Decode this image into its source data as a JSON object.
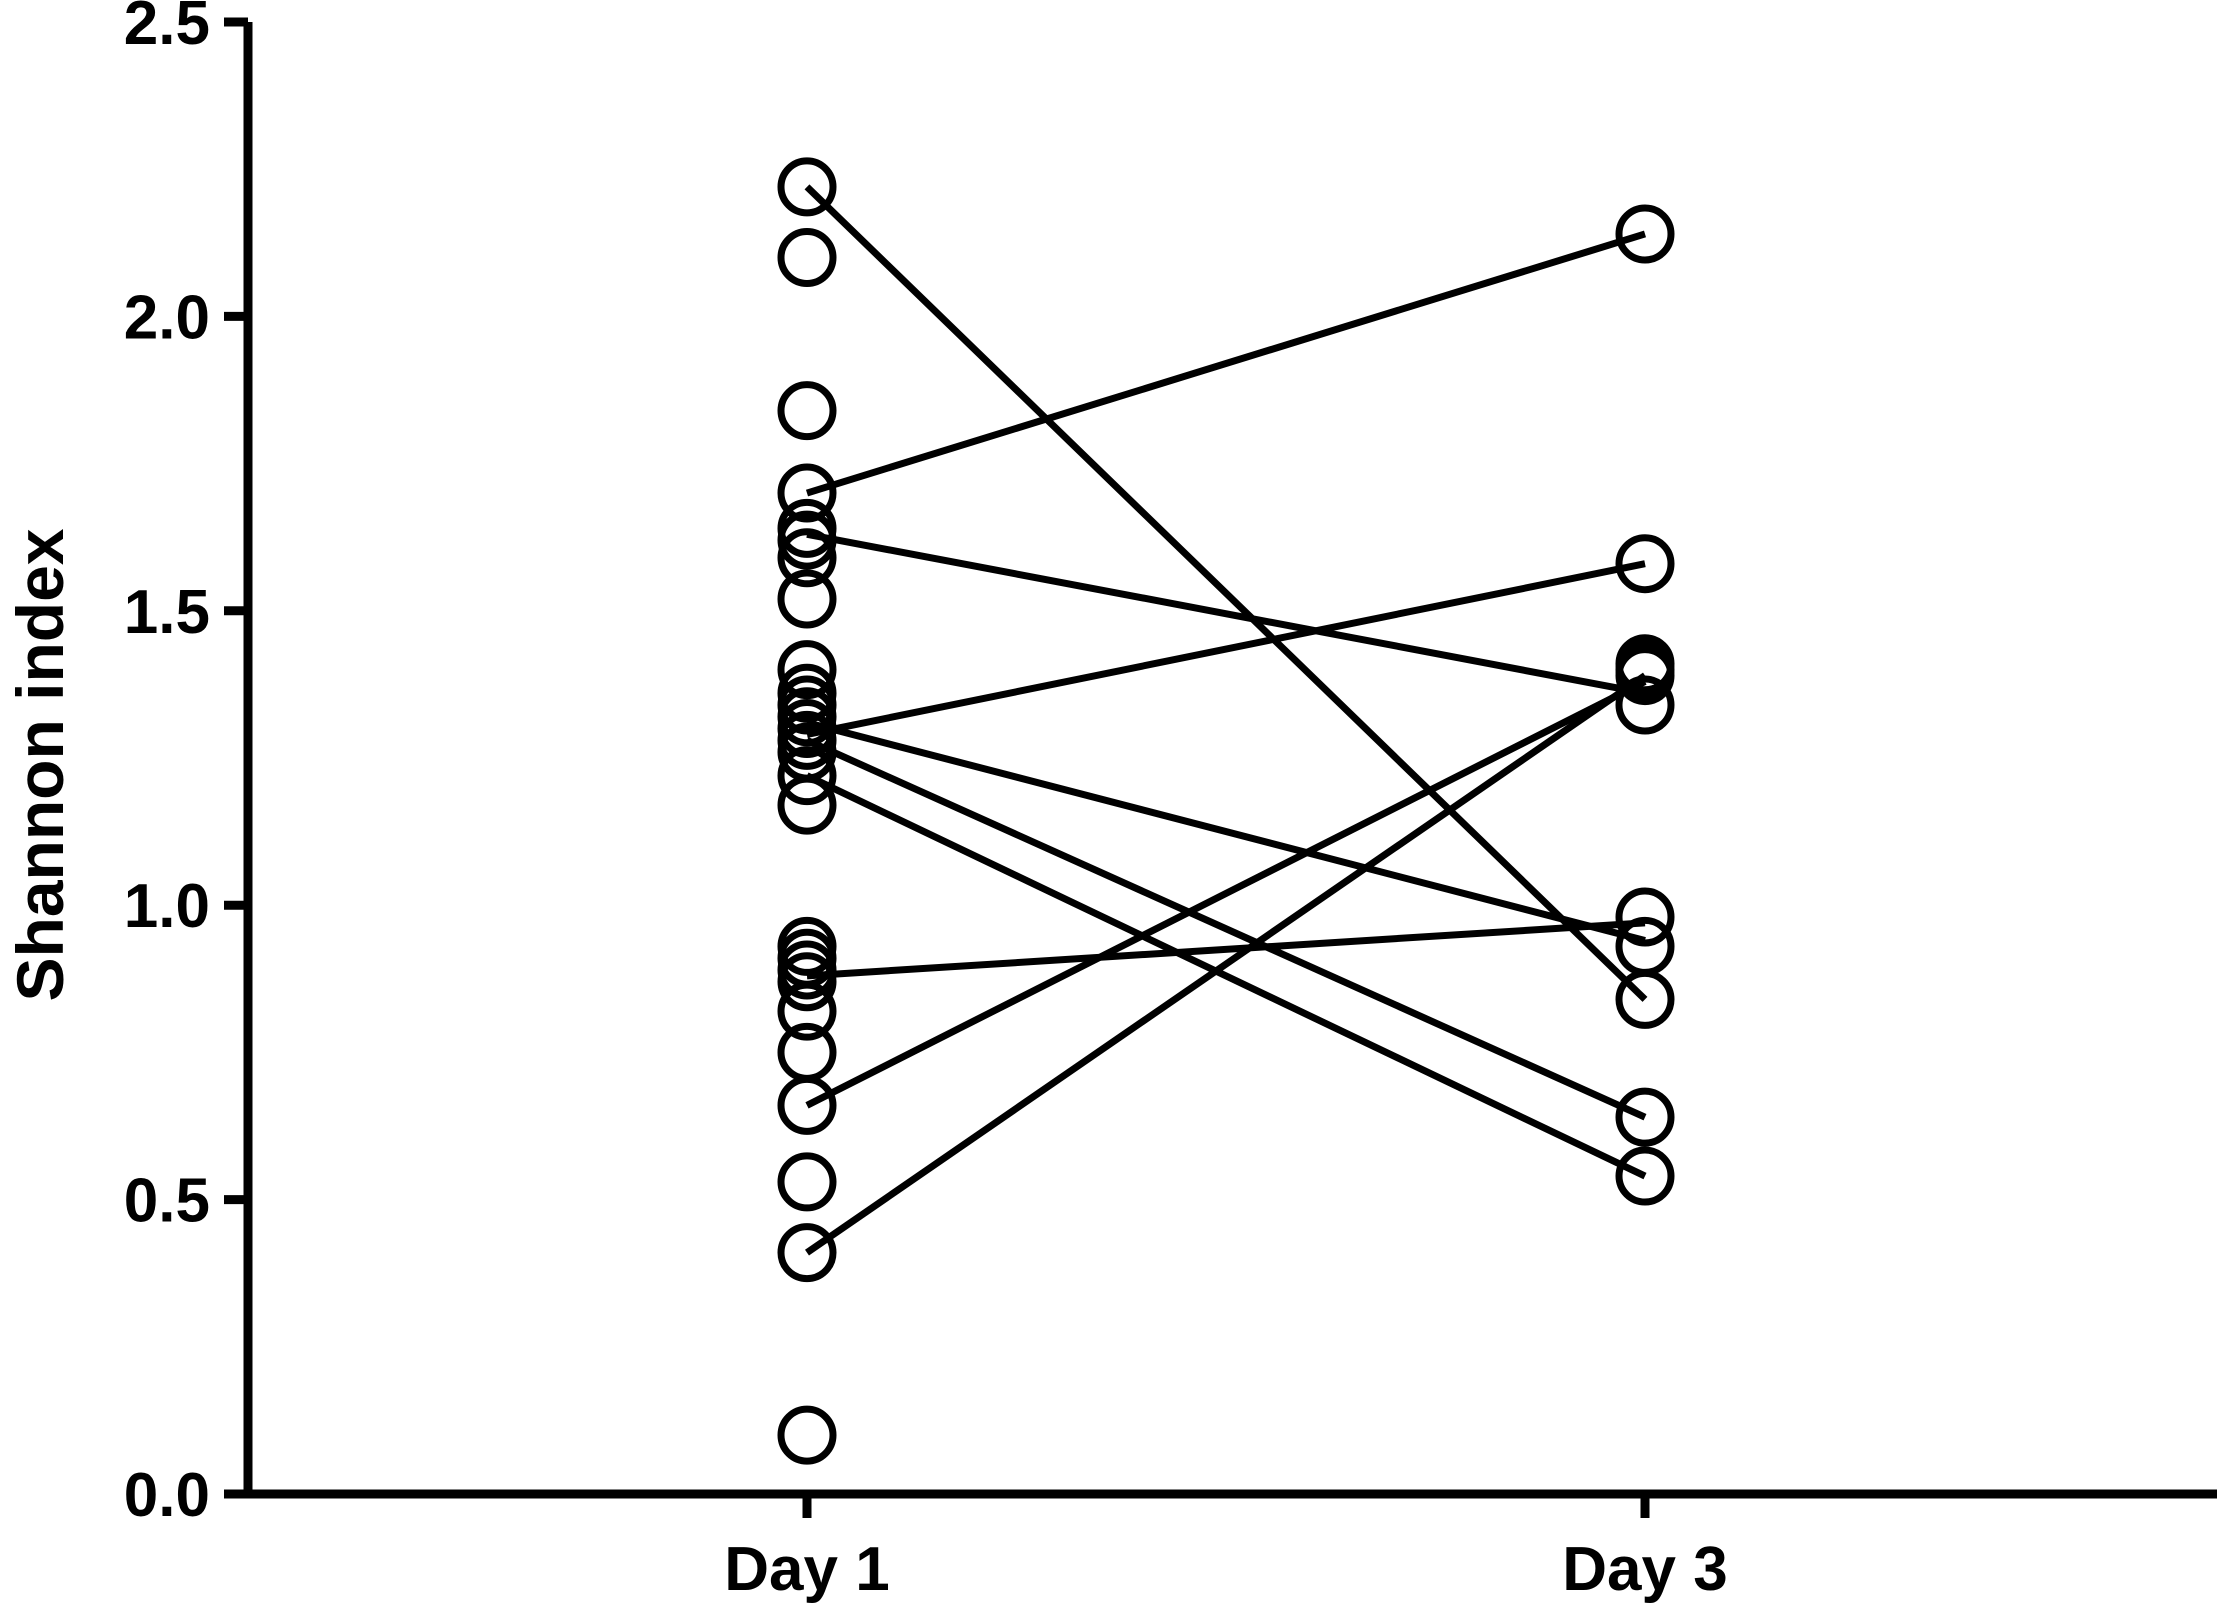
{
  "chart_data": {
    "type": "scatter",
    "subtype": "paired-dot-plot",
    "title": "",
    "xlabel": "",
    "ylabel": "Shannon index",
    "categories": [
      "Day 1",
      "Day 3"
    ],
    "ylim": [
      0,
      2.5
    ],
    "yticks": [
      "0.0",
      "0.5",
      "1.0",
      "1.5",
      "2.0",
      "2.5"
    ],
    "grid": false,
    "legend": "none",
    "marker": "open-circle",
    "color": "#000000",
    "points": {
      "Day 1": [
        2.22,
        2.1,
        1.84,
        1.7,
        1.64,
        1.62,
        1.59,
        1.52,
        1.4,
        1.36,
        1.34,
        1.32,
        1.3,
        1.28,
        1.26,
        1.22,
        1.17,
        0.93,
        0.91,
        0.89,
        0.87,
        0.82,
        0.75,
        0.66,
        0.53,
        0.41,
        0.1
      ],
      "Day 3": [
        2.14,
        1.58,
        1.41,
        1.4,
        1.39,
        1.34,
        0.98,
        0.93,
        0.84,
        0.64,
        0.54
      ]
    },
    "pairs": [
      {
        "day1": 2.22,
        "day3": 0.84
      },
      {
        "day1": 1.7,
        "day3": 2.14
      },
      {
        "day1": 1.63,
        "day3": 1.36
      },
      {
        "day1": 1.29,
        "day3": 1.58
      },
      {
        "day1": 1.31,
        "day3": 0.94
      },
      {
        "day1": 1.28,
        "day3": 0.64
      },
      {
        "day1": 1.22,
        "day3": 0.54
      },
      {
        "day1": 0.88,
        "day3": 0.97
      },
      {
        "day1": 0.66,
        "day3": 1.38
      },
      {
        "day1": 0.41,
        "day3": 1.39
      }
    ]
  }
}
